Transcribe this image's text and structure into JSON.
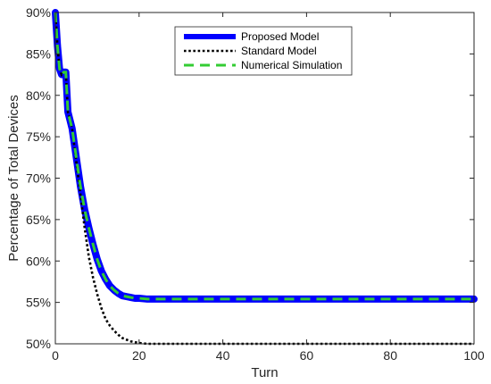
{
  "chart_data": {
    "type": "line",
    "xlabel": "Turn",
    "ylabel": "Percentage of Total Devices",
    "xlim": [
      0,
      100
    ],
    "ylim": [
      50,
      90
    ],
    "xticks": [
      0,
      20,
      40,
      60,
      80,
      100
    ],
    "yticks": [
      50,
      55,
      60,
      65,
      70,
      75,
      80,
      85,
      90
    ],
    "yticks_format": "percent",
    "grid": false,
    "legend_position": "top-center",
    "series": [
      {
        "name": "Proposed Model",
        "color": "#0000ff",
        "style": "solid-thick",
        "x": [
          0,
          0.5,
          1,
          1.5,
          2,
          2.5,
          3,
          3.5,
          4,
          5,
          6,
          7,
          8,
          9,
          10,
          11,
          12,
          13,
          14,
          15,
          16,
          17,
          18,
          19,
          20,
          22,
          25,
          30,
          40,
          50,
          60,
          70,
          80,
          90,
          100
        ],
        "y": [
          90,
          86,
          83.2,
          82.5,
          82.8,
          82.8,
          78,
          77,
          76,
          72.5,
          69,
          66.2,
          64,
          62,
          60.2,
          58.8,
          57.8,
          57,
          56.5,
          56.1,
          55.8,
          55.7,
          55.6,
          55.5,
          55.5,
          55.4,
          55.4,
          55.4,
          55.4,
          55.4,
          55.4,
          55.4,
          55.4,
          55.4,
          55.4
        ]
      },
      {
        "name": "Standard Model",
        "color": "#000000",
        "style": "dotted",
        "x": [
          0,
          0.5,
          1,
          1.5,
          2,
          2.5,
          3,
          3.5,
          4,
          5,
          6,
          7,
          8,
          9,
          10,
          11,
          12,
          13,
          14,
          15,
          16,
          17,
          18,
          19,
          20,
          22,
          25,
          30,
          40,
          50,
          60,
          70,
          80,
          90,
          100
        ],
        "y": [
          90,
          86,
          83.2,
          82.5,
          82.8,
          82.8,
          78,
          77,
          76,
          72,
          68,
          64,
          60.5,
          58,
          56,
          54.3,
          53,
          52.2,
          51.6,
          51.1,
          50.7,
          50.5,
          50.3,
          50.2,
          50.1,
          50,
          50,
          50,
          50,
          50,
          50,
          50,
          50,
          50,
          50
        ]
      },
      {
        "name": "Numerical Simulation",
        "color": "#33cc33",
        "style": "dashed",
        "x": [
          0,
          0.5,
          1,
          1.5,
          2,
          2.5,
          3,
          3.5,
          4,
          5,
          6,
          7,
          8,
          9,
          10,
          11,
          12,
          13,
          14,
          15,
          16,
          17,
          18,
          19,
          20,
          22,
          25,
          30,
          40,
          50,
          60,
          70,
          80,
          90,
          100
        ],
        "y": [
          90,
          86,
          83.2,
          82.5,
          82.8,
          82.8,
          78,
          77,
          76,
          72.5,
          69,
          66.2,
          64,
          62,
          60.2,
          58.8,
          57.8,
          57,
          56.5,
          56.1,
          55.8,
          55.7,
          55.6,
          55.5,
          55.5,
          55.4,
          55.4,
          55.4,
          55.4,
          55.4,
          55.4,
          55.4,
          55.4,
          55.4,
          55.4
        ]
      }
    ]
  }
}
